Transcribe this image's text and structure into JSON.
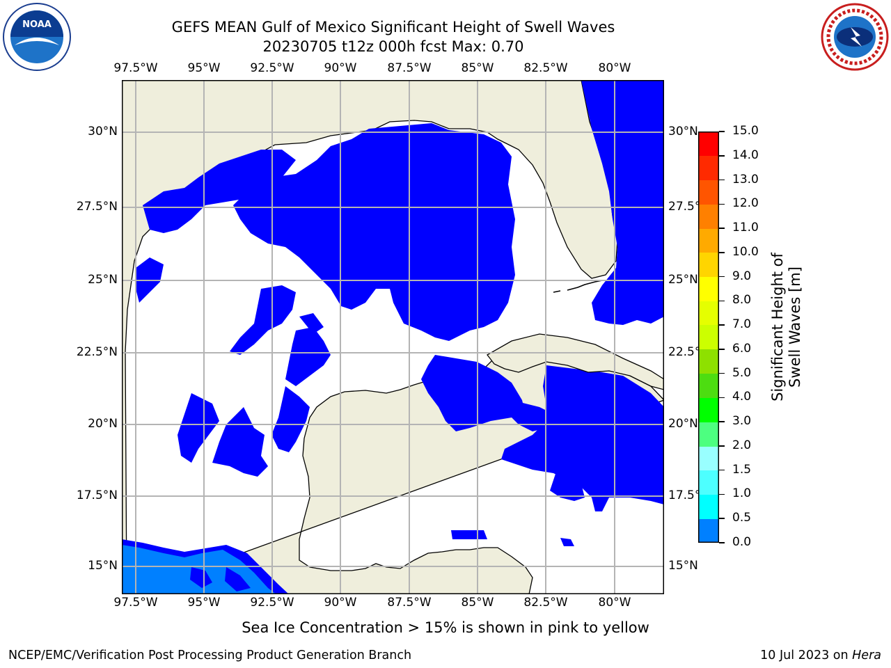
{
  "title": {
    "line1": "GEFS MEAN Gulf of Mexico Significant Height of Swell Waves",
    "line2": "20230705 t12z 000h fcst   Max: 0.70"
  },
  "logos": {
    "left": {
      "icon": "noaa-logo",
      "text": "NOAA"
    },
    "right": {
      "icon": "nws-logo",
      "text": "NATIONAL WEATHER SERVICE"
    }
  },
  "map": {
    "lon_labels": [
      "97.5°W",
      "95°W",
      "92.5°W",
      "90°W",
      "87.5°W",
      "85°W",
      "82.5°W",
      "80°W"
    ],
    "lat_labels_left": [
      "30°N",
      "27.5°N",
      "25°N",
      "22.5°N",
      "20°N",
      "17.5°N",
      "15°N"
    ],
    "lat_labels_right": [
      "30°N",
      "27.5°",
      "25°N",
      "22.5°",
      "20°N",
      "17.5°",
      "15°N"
    ],
    "colors": {
      "land": "#efeedc",
      "water_low": "#0000ff",
      "water_mid": "#0080ff",
      "water_zero": "#ffffff",
      "grid": "#b4b4b4"
    }
  },
  "colorbar": {
    "label": "Significant Height of Swell Waves [m]",
    "ticks": [
      "15.0",
      "14.0",
      "13.0",
      "12.0",
      "11.0",
      "10.0",
      "9.0",
      "8.0",
      "7.0",
      "6.0",
      "5.0",
      "4.0",
      "3.0",
      "2.0",
      "1.5",
      "1.0",
      "0.5",
      "0.0"
    ],
    "colors_top_to_bottom": [
      "#ff0000",
      "#ff2000",
      "#ff5000",
      "#ff8000",
      "#ff9d00",
      "#ffb000",
      "#ffe600",
      "#ffff00",
      "#e6ff00",
      "#ccff00",
      "#a6ff00",
      "#4ddd11",
      "#00ff00",
      "#4dff80",
      "#99ffee",
      "#4dffff",
      "#00e6ff",
      "#0080ff",
      "#0000ff"
    ]
  },
  "footnote": "Sea Ice Concentration > 15% is shown in pink to yellow",
  "credit_left": "NCEP/EMC/Verification Post Processing Product Generation Branch",
  "credit_right": {
    "date": "10 Jul 2023 on ",
    "machine": "Hera"
  }
}
